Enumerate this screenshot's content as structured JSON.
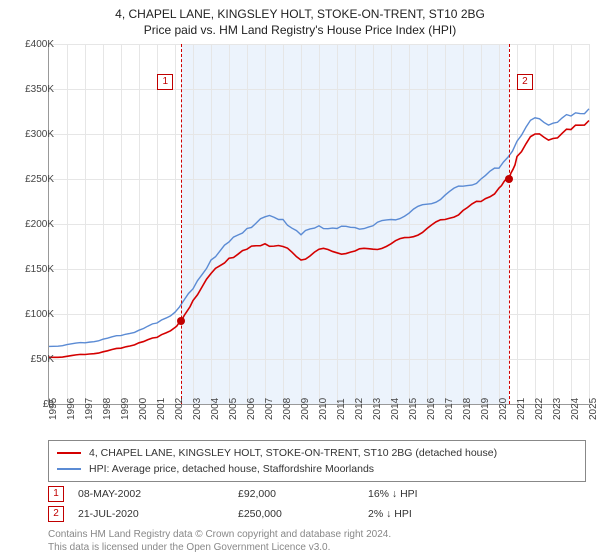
{
  "title": {
    "line1": "4, CHAPEL LANE, KINGSLEY HOLT, STOKE-ON-TRENT, ST10 2BG",
    "line2": "Price paid vs. HM Land Registry's House Price Index (HPI)"
  },
  "chart": {
    "type": "line",
    "background_color": "#ffffff",
    "grid_color": "#e6e6e6",
    "axis_color": "#999999",
    "shaded_band_color": "rgba(200,220,245,0.35)",
    "shaded_band": {
      "start_year": 2002.35,
      "end_year": 2020.55
    },
    "x": {
      "min": 1995,
      "max": 2025,
      "tick_step": 1,
      "labels_rotated": true
    },
    "y": {
      "min": 0,
      "max": 400000,
      "tick_step": 50000,
      "prefix": "£",
      "suffix": "K",
      "label_divisor": 1000
    },
    "series": [
      {
        "id": "price_paid",
        "label": "4, CHAPEL LANE, KINGSLEY HOLT, STOKE-ON-TRENT, ST10 2BG (detached house)",
        "color": "#d40000",
        "line_width": 1.6,
        "data": [
          [
            1995,
            52000
          ],
          [
            1996,
            53000
          ],
          [
            1997,
            55000
          ],
          [
            1998,
            58000
          ],
          [
            1999,
            62000
          ],
          [
            2000,
            68000
          ],
          [
            2001,
            74000
          ],
          [
            2002,
            85000
          ],
          [
            2002.35,
            92000
          ],
          [
            2003,
            115000
          ],
          [
            2004,
            145000
          ],
          [
            2005,
            162000
          ],
          [
            2006,
            172000
          ],
          [
            2007,
            178000
          ],
          [
            2008,
            175000
          ],
          [
            2009,
            160000
          ],
          [
            2010,
            172000
          ],
          [
            2011,
            168000
          ],
          [
            2012,
            170000
          ],
          [
            2013,
            172000
          ],
          [
            2014,
            178000
          ],
          [
            2015,
            185000
          ],
          [
            2016,
            195000
          ],
          [
            2017,
            205000
          ],
          [
            2018,
            215000
          ],
          [
            2019,
            225000
          ],
          [
            2020,
            240000
          ],
          [
            2020.55,
            250000
          ],
          [
            2021,
            275000
          ],
          [
            2022,
            300000
          ],
          [
            2023,
            295000
          ],
          [
            2024,
            305000
          ],
          [
            2025,
            315000
          ]
        ]
      },
      {
        "id": "hpi",
        "label": "HPI: Average price, detached house, Staffordshire Moorlands",
        "color": "#5b8bd4",
        "line_width": 1.4,
        "data": [
          [
            1995,
            64000
          ],
          [
            1996,
            66000
          ],
          [
            1997,
            68000
          ],
          [
            1998,
            72000
          ],
          [
            1999,
            76000
          ],
          [
            2000,
            82000
          ],
          [
            2001,
            90000
          ],
          [
            2002,
            102000
          ],
          [
            2003,
            128000
          ],
          [
            2004,
            160000
          ],
          [
            2005,
            180000
          ],
          [
            2006,
            195000
          ],
          [
            2007,
            208000
          ],
          [
            2008,
            205000
          ],
          [
            2009,
            188000
          ],
          [
            2010,
            198000
          ],
          [
            2011,
            195000
          ],
          [
            2012,
            196000
          ],
          [
            2013,
            198000
          ],
          [
            2014,
            205000
          ],
          [
            2015,
            212000
          ],
          [
            2016,
            222000
          ],
          [
            2017,
            232000
          ],
          [
            2018,
            242000
          ],
          [
            2019,
            250000
          ],
          [
            2020,
            262000
          ],
          [
            2021,
            292000
          ],
          [
            2022,
            318000
          ],
          [
            2023,
            312000
          ],
          [
            2024,
            320000
          ],
          [
            2025,
            328000
          ]
        ]
      }
    ],
    "markers": [
      {
        "id": "1",
        "year": 2002.35,
        "value": 92000
      },
      {
        "id": "2",
        "year": 2020.55,
        "value": 250000
      }
    ]
  },
  "legend": {
    "rows": [
      {
        "color": "#d40000",
        "text": "4, CHAPEL LANE, KINGSLEY HOLT, STOKE-ON-TRENT, ST10 2BG (detached house)"
      },
      {
        "color": "#5b8bd4",
        "text": "HPI: Average price, detached house, Staffordshire Moorlands"
      }
    ]
  },
  "sales": [
    {
      "id": "1",
      "date": "08-MAY-2002",
      "price": "£92,000",
      "diff": "16% ↓ HPI"
    },
    {
      "id": "2",
      "date": "21-JUL-2020",
      "price": "£250,000",
      "diff": "2% ↓ HPI"
    }
  ],
  "footer": {
    "line1": "Contains HM Land Registry data © Crown copyright and database right 2024.",
    "line2": "This data is licensed under the Open Government Licence v3.0."
  }
}
